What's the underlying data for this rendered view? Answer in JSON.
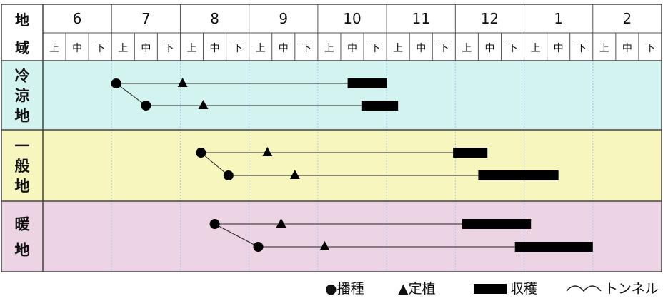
{
  "header": {
    "region_label_line1": "地",
    "region_label_line2": "域",
    "months": [
      "6",
      "7",
      "8",
      "9",
      "10",
      "11",
      "12",
      "1",
      "2"
    ],
    "periods": [
      "上",
      "中",
      "下"
    ]
  },
  "regions": [
    {
      "label": [
        "冷",
        "涼",
        "地"
      ],
      "color": "#d3f3f1",
      "rows": [
        {
          "sow": 3.2,
          "plant": 6.1,
          "harvest": [
            13.3,
            15.0
          ]
        },
        {
          "sow": 4.5,
          "plant": 7.0,
          "harvest": [
            13.9,
            15.5
          ]
        }
      ]
    },
    {
      "label": [
        "一",
        "般",
        "地"
      ],
      "color": "#f6f6be",
      "rows": [
        {
          "sow": 6.9,
          "plant": 9.8,
          "harvest": [
            17.9,
            19.4
          ]
        },
        {
          "sow": 8.1,
          "plant": 11.0,
          "harvest": [
            19.0,
            22.5
          ]
        }
      ]
    },
    {
      "label": [
        "暖",
        "地"
      ],
      "color": "#edd4e4",
      "rows": [
        {
          "sow": 7.5,
          "plant": 10.4,
          "harvest": [
            18.3,
            21.3
          ]
        },
        {
          "sow": 9.4,
          "plant": 12.3,
          "harvest": [
            20.6,
            24.0
          ]
        }
      ]
    }
  ],
  "legend": {
    "sow": "●播種",
    "plant": "▲定植",
    "harvest": "収穫",
    "tunnel": "トンネル"
  }
}
